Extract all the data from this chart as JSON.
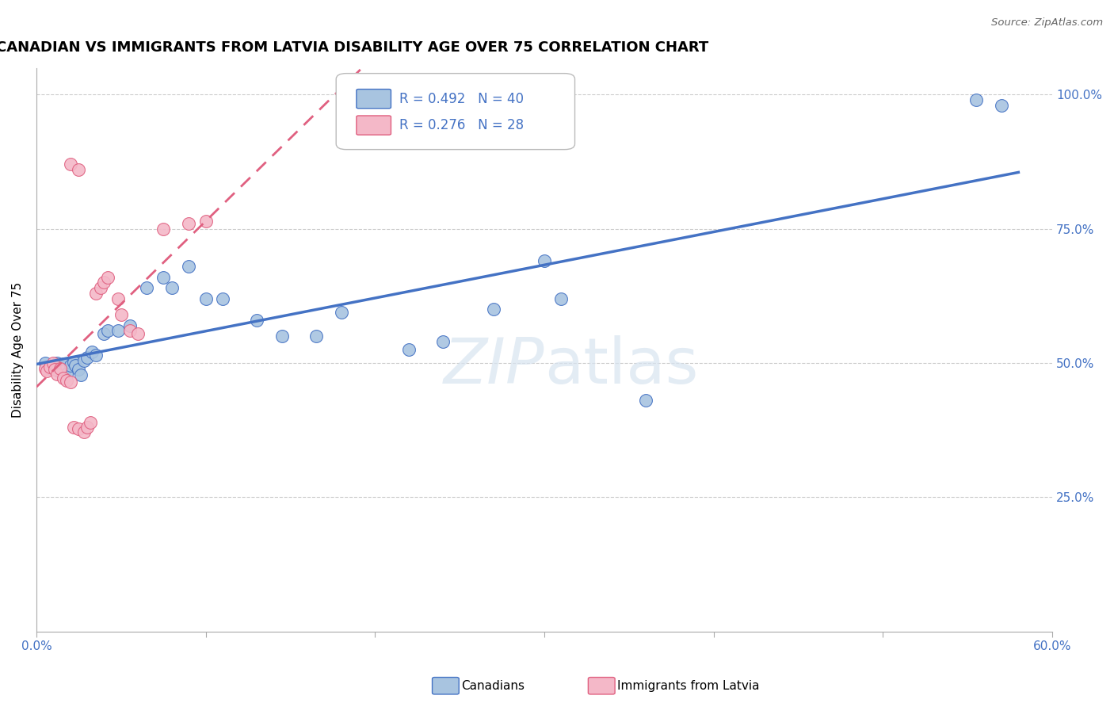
{
  "title": "CANADIAN VS IMMIGRANTS FROM LATVIA DISABILITY AGE OVER 75 CORRELATION CHART",
  "source": "Source: ZipAtlas.com",
  "ylabel": "Disability Age Over 75",
  "xlim": [
    0.0,
    0.6
  ],
  "ylim": [
    0.0,
    1.05
  ],
  "xtick_vals": [
    0.0,
    0.1,
    0.2,
    0.3,
    0.4,
    0.5,
    0.6
  ],
  "xticklabels": [
    "0.0%",
    "",
    "",
    "",
    "",
    "",
    "60.0%"
  ],
  "ytick_vals": [
    0.0,
    0.25,
    0.5,
    0.75,
    1.0
  ],
  "yticklabels": [
    "",
    "25.0%",
    "50.0%",
    "75.0%",
    "100.0%"
  ],
  "canadians_x": [
    0.005,
    0.008,
    0.01,
    0.012,
    0.013,
    0.015,
    0.016,
    0.017,
    0.018,
    0.02,
    0.022,
    0.023,
    0.025,
    0.026,
    0.028,
    0.03,
    0.033,
    0.035,
    0.04,
    0.042,
    0.048,
    0.055,
    0.065,
    0.075,
    0.08,
    0.09,
    0.1,
    0.11,
    0.13,
    0.145,
    0.165,
    0.18,
    0.22,
    0.24,
    0.27,
    0.31,
    0.36,
    0.3,
    0.555,
    0.57
  ],
  "canadians_y": [
    0.5,
    0.49,
    0.495,
    0.5,
    0.485,
    0.492,
    0.498,
    0.487,
    0.48,
    0.495,
    0.502,
    0.496,
    0.488,
    0.478,
    0.505,
    0.51,
    0.52,
    0.515,
    0.555,
    0.56,
    0.56,
    0.57,
    0.64,
    0.66,
    0.64,
    0.68,
    0.62,
    0.62,
    0.58,
    0.55,
    0.55,
    0.595,
    0.525,
    0.54,
    0.6,
    0.62,
    0.43,
    0.69,
    0.99,
    0.98
  ],
  "latvia_x": [
    0.005,
    0.006,
    0.008,
    0.01,
    0.011,
    0.012,
    0.014,
    0.016,
    0.018,
    0.02,
    0.022,
    0.025,
    0.028,
    0.03,
    0.032,
    0.035,
    0.038,
    0.04,
    0.042,
    0.048,
    0.05,
    0.055,
    0.06,
    0.075,
    0.09,
    0.1,
    0.02,
    0.025
  ],
  "latvia_y": [
    0.49,
    0.485,
    0.492,
    0.5,
    0.488,
    0.48,
    0.49,
    0.472,
    0.468,
    0.465,
    0.38,
    0.378,
    0.372,
    0.38,
    0.39,
    0.63,
    0.64,
    0.65,
    0.66,
    0.62,
    0.59,
    0.56,
    0.555,
    0.75,
    0.76,
    0.765,
    0.87,
    0.86
  ],
  "canadian_R": 0.492,
  "canadian_N": 40,
  "latvia_R": 0.276,
  "latvia_N": 28,
  "canadian_color": "#A8C4E0",
  "latvia_color": "#F4B8C8",
  "canadian_line_color": "#4472C4",
  "latvia_line_color": "#E06080",
  "background_color": "#FFFFFF",
  "title_fontsize": 13,
  "label_fontsize": 11,
  "tick_fontsize": 11
}
